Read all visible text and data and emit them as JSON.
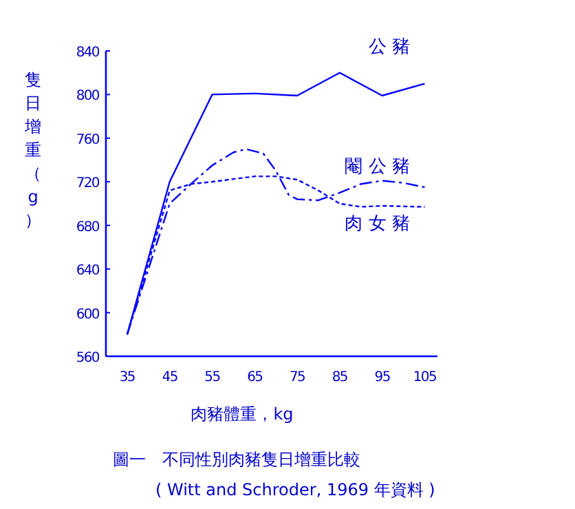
{
  "chart_data": {
    "type": "line",
    "title": "圖一　不同性別肉豬隻日增重比較",
    "subtitle": "( Witt  and Schroder, 1969 年資料 )",
    "xlabel": "肉豬體重，kg",
    "ylabel": "隻日增重（g）",
    "xlim": [
      30,
      108
    ],
    "xticks": [
      35,
      45,
      55,
      65,
      75,
      85,
      95,
      105
    ],
    "ylim": [
      560,
      840
    ],
    "yticks": [
      560,
      600,
      640,
      680,
      720,
      760,
      800,
      840
    ],
    "grid": false,
    "legend": false,
    "marker": "none",
    "series": [
      {
        "name": "公 豬",
        "color": "#0000ff",
        "line_style": "solid",
        "x": [
          35,
          45,
          55,
          65,
          75,
          85,
          95,
          105
        ],
        "values": [
          580,
          720,
          800,
          801,
          799,
          820,
          799,
          810
        ]
      },
      {
        "name": "閹 公 豬",
        "color": "#0000ff",
        "line_style": "dashed",
        "x": [
          35,
          45,
          50,
          55,
          60,
          63,
          67,
          70,
          73,
          75,
          80,
          85,
          90,
          95,
          100,
          105
        ],
        "values": [
          580,
          700,
          718,
          735,
          747,
          750,
          746,
          730,
          708,
          704,
          703,
          710,
          718,
          721,
          719,
          715
        ]
      },
      {
        "name": "肉 女 豬",
        "color": "#0000ff",
        "line_style": "dotted",
        "x": [
          35,
          45,
          50,
          55,
          65,
          70,
          75,
          80,
          85,
          90,
          95,
          105
        ],
        "values": [
          580,
          712,
          718,
          720,
          725,
          725,
          722,
          712,
          700,
          697,
          698,
          697
        ]
      }
    ]
  }
}
